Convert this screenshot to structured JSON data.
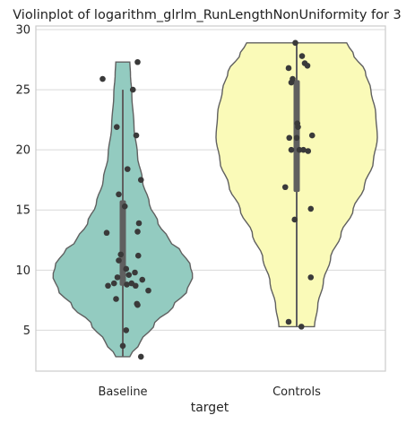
{
  "chart_data": {
    "type": "violin",
    "title": "Violinplot of logarithm_glrlm_RunLengthNonUniformity for 3",
    "xlabel": "target",
    "ylabel": "",
    "categories": [
      "Baseline",
      "Controls"
    ],
    "ylim": [
      1.6,
      30.3
    ],
    "yticks": [
      5,
      10,
      15,
      20,
      25,
      30
    ],
    "grid": true,
    "colors": {
      "Baseline": "#93cbc0",
      "Controls": "#fafab8"
    },
    "series": [
      {
        "category": "Baseline",
        "violin_range": [
          2.8,
          27.3
        ],
        "box": {
          "q1": 8.7,
          "q3": 15.8,
          "whisker_low": 2.8,
          "whisker_high": 25.0
        },
        "profile": [
          [
            2.8,
            0.1
          ],
          [
            4,
            0.25
          ],
          [
            5.5,
            0.45
          ],
          [
            7,
            0.72
          ],
          [
            8.3,
            0.92
          ],
          [
            9.5,
            1.0
          ],
          [
            10.5,
            0.96
          ],
          [
            11.5,
            0.84
          ],
          [
            12.5,
            0.66
          ],
          [
            14,
            0.5
          ],
          [
            15.5,
            0.38
          ],
          [
            17.5,
            0.28
          ],
          [
            19.5,
            0.21
          ],
          [
            22,
            0.16
          ],
          [
            24.5,
            0.13
          ],
          [
            26.3,
            0.11
          ],
          [
            27.3,
            0.1
          ]
        ],
        "points": [
          [
            -0.3,
            25.9
          ],
          [
            0.22,
            27.3
          ],
          [
            0.15,
            25.0
          ],
          [
            -0.09,
            21.9
          ],
          [
            0.2,
            21.2
          ],
          [
            0.07,
            18.4
          ],
          [
            0.27,
            17.5
          ],
          [
            -0.06,
            16.3
          ],
          [
            0.03,
            15.3
          ],
          [
            0.24,
            13.9
          ],
          [
            0.22,
            13.2
          ],
          [
            -0.24,
            13.1
          ],
          [
            -0.03,
            11.3
          ],
          [
            0.23,
            11.2
          ],
          [
            -0.06,
            10.8
          ],
          [
            0.05,
            10.1
          ],
          [
            0.18,
            9.8
          ],
          [
            0.09,
            9.6
          ],
          [
            -0.08,
            9.4
          ],
          [
            0.29,
            9.2
          ],
          [
            -0.13,
            8.9
          ],
          [
            0.13,
            8.9
          ],
          [
            0.06,
            8.8
          ],
          [
            -0.22,
            8.7
          ],
          [
            0.19,
            8.7
          ],
          [
            0.38,
            8.3
          ],
          [
            -0.1,
            7.6
          ],
          [
            0.21,
            7.2
          ],
          [
            0.22,
            7.1
          ],
          [
            0.05,
            5.0
          ],
          [
            0.0,
            3.7
          ],
          [
            0.27,
            2.8
          ]
        ]
      },
      {
        "category": "Controls",
        "violin_range": [
          5.3,
          28.9
        ],
        "box": {
          "q1": 16.5,
          "q3": 25.8,
          "whisker_low": 5.3,
          "whisker_high": 28.9
        },
        "profile": [
          [
            5.3,
            0.22
          ],
          [
            7,
            0.26
          ],
          [
            9,
            0.33
          ],
          [
            11,
            0.42
          ],
          [
            13,
            0.55
          ],
          [
            15,
            0.7
          ],
          [
            17,
            0.84
          ],
          [
            19,
            0.95
          ],
          [
            21,
            1.0
          ],
          [
            23,
            0.98
          ],
          [
            25,
            0.92
          ],
          [
            26.5,
            0.85
          ],
          [
            28,
            0.7
          ],
          [
            28.9,
            0.62
          ]
        ],
        "points": [
          [
            -0.02,
            28.9
          ],
          [
            0.08,
            27.8
          ],
          [
            0.12,
            27.2
          ],
          [
            0.16,
            27.0
          ],
          [
            -0.12,
            26.8
          ],
          [
            -0.08,
            25.6
          ],
          [
            -0.06,
            25.9
          ],
          [
            0.01,
            22.2
          ],
          [
            0.02,
            21.9
          ],
          [
            0.23,
            21.2
          ],
          [
            0.0,
            21.0
          ],
          [
            -0.11,
            21.0
          ],
          [
            0.04,
            20.0
          ],
          [
            -0.08,
            20.0
          ],
          [
            0.1,
            20.0
          ],
          [
            0.17,
            19.9
          ],
          [
            -0.17,
            16.9
          ],
          [
            0.21,
            15.1
          ],
          [
            -0.03,
            14.2
          ],
          [
            0.21,
            9.4
          ],
          [
            -0.12,
            5.7
          ],
          [
            0.07,
            5.3
          ]
        ]
      }
    ]
  }
}
